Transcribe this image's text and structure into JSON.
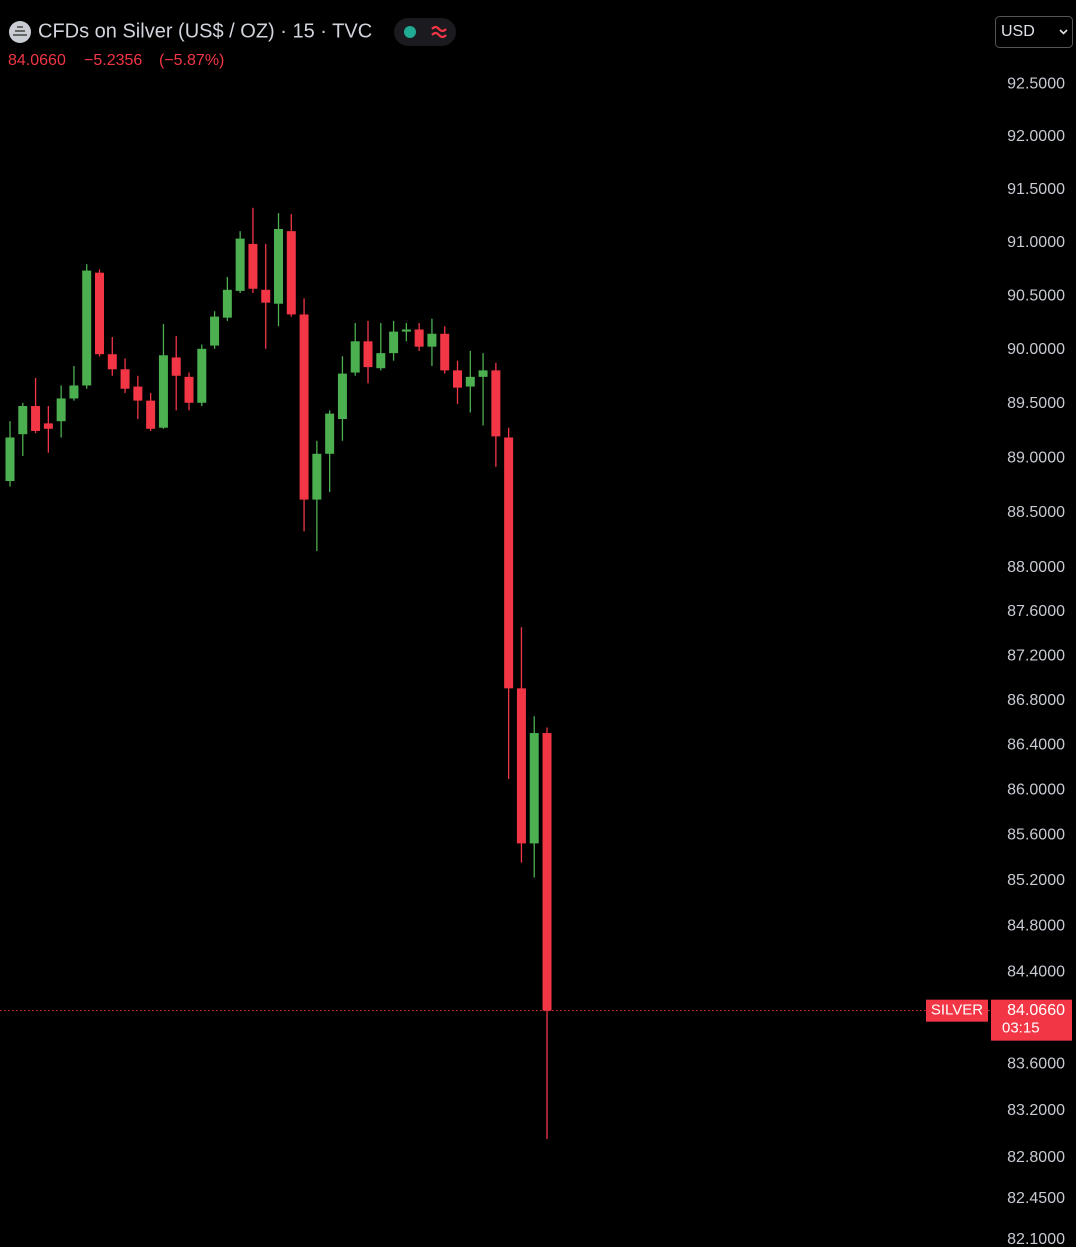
{
  "chart_data": {
    "type": "candlestick",
    "title": "CFDs on Silver (US$ / OZ) · 15 · TVC",
    "currency": "USD",
    "change": "−5.2356",
    "change_pct": "(−5.87%)",
    "symbol_label": "SILVER",
    "countdown": "03:15",
    "last_price": {
      "value": 84.066,
      "label": "84.0660"
    },
    "log": true,
    "up_color": "#4caf50",
    "down_color": "#f23645",
    "ylim": [
      82.04,
      93.31
    ],
    "yticks": [
      {
        "value": 92.5,
        "label": "92.5000"
      },
      {
        "value": 92.0,
        "label": "92.0000"
      },
      {
        "value": 91.5,
        "label": "91.5000"
      },
      {
        "value": 91.0,
        "label": "91.0000"
      },
      {
        "value": 90.5,
        "label": "90.5000"
      },
      {
        "value": 90.0,
        "label": "90.0000"
      },
      {
        "value": 89.5,
        "label": "89.5000"
      },
      {
        "value": 89.0,
        "label": "89.0000"
      },
      {
        "value": 88.5,
        "label": "88.5000"
      },
      {
        "value": 88.0,
        "label": "88.0000"
      },
      {
        "value": 87.6,
        "label": "87.6000"
      },
      {
        "value": 87.2,
        "label": "87.2000"
      },
      {
        "value": 86.8,
        "label": "86.8000"
      },
      {
        "value": 86.4,
        "label": "86.4000"
      },
      {
        "value": 86.0,
        "label": "86.0000"
      },
      {
        "value": 85.6,
        "label": "85.6000"
      },
      {
        "value": 85.2,
        "label": "85.2000"
      },
      {
        "value": 84.8,
        "label": "84.8000"
      },
      {
        "value": 84.4,
        "label": "84.4000"
      },
      {
        "value": 83.6,
        "label": "83.6000"
      },
      {
        "value": 83.2,
        "label": "83.2000"
      },
      {
        "value": 82.8,
        "label": "82.8000"
      },
      {
        "value": 82.45,
        "label": "82.4500"
      },
      {
        "value": 82.1,
        "label": "82.1000"
      }
    ],
    "open": [
      88.79,
      89.22,
      89.48,
      89.32,
      89.34,
      89.55,
      89.67,
      90.72,
      89.96,
      89.82,
      89.66,
      89.53,
      89.28,
      89.93,
      89.75,
      89.51,
      90.04,
      90.3,
      90.55,
      90.99,
      90.56,
      90.43,
      91.11,
      90.33,
      88.62,
      89.04,
      89.36,
      89.79,
      90.08,
      89.83,
      89.97,
      90.17,
      90.19,
      90.03,
      90.15,
      89.81,
      89.66,
      89.75,
      89.81,
      89.19,
      86.91,
      85.53,
      86.51
    ],
    "high": [
      89.34,
      89.51,
      89.74,
      89.48,
      89.67,
      89.85,
      90.8,
      90.75,
      90.12,
      89.92,
      89.76,
      89.6,
      90.24,
      90.13,
      89.79,
      90.05,
      90.36,
      90.68,
      91.11,
      91.33,
      90.99,
      91.28,
      91.27,
      90.48,
      89.16,
      89.44,
      89.94,
      90.25,
      90.27,
      90.25,
      90.27,
      90.25,
      90.25,
      90.29,
      90.22,
      89.9,
      89.99,
      89.97,
      89.88,
      89.28,
      87.46,
      86.66,
      86.56
    ],
    "low": [
      88.74,
      89.02,
      89.23,
      89.05,
      89.19,
      89.53,
      89.64,
      89.94,
      89.76,
      89.6,
      89.36,
      89.25,
      89.27,
      89.44,
      89.44,
      89.48,
      90.01,
      90.27,
      90.53,
      90.53,
      90.01,
      90.22,
      90.31,
      88.33,
      88.15,
      88.69,
      89.16,
      89.76,
      89.69,
      89.81,
      89.9,
      90.08,
      89.99,
      89.85,
      89.78,
      89.5,
      89.42,
      89.3,
      88.92,
      86.1,
      85.36,
      85.23,
      82.96
    ],
    "close": [
      89.19,
      89.48,
      89.25,
      89.27,
      89.55,
      89.67,
      90.74,
      89.96,
      89.82,
      89.64,
      89.53,
      89.27,
      89.95,
      89.76,
      89.51,
      90.01,
      90.31,
      90.56,
      91.04,
      90.57,
      90.44,
      91.13,
      90.33,
      88.62,
      89.04,
      89.41,
      89.78,
      90.08,
      89.84,
      89.97,
      90.17,
      90.19,
      90.03,
      90.15,
      89.81,
      89.65,
      89.75,
      89.81,
      89.2,
      86.91,
      85.53,
      86.51,
      84.066
    ]
  }
}
